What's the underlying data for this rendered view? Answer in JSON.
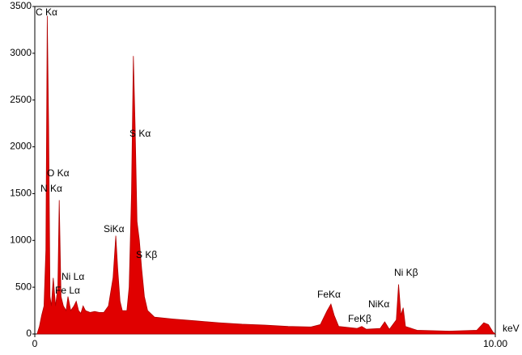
{
  "chart_data": {
    "type": "area",
    "x_label": "keV",
    "color": "#e00000",
    "xlim": [
      0,
      10
    ],
    "xticks": [
      0,
      {
        "value": 10,
        "label": "10.00"
      }
    ],
    "ylim": [
      0,
      3500
    ],
    "yticks": [
      0,
      500,
      1000,
      1500,
      2000,
      2500,
      3000,
      3500
    ],
    "x": [
      0.05,
      0.1,
      0.15,
      0.2,
      0.24,
      0.27,
      0.3,
      0.33,
      0.36,
      0.4,
      0.45,
      0.5,
      0.53,
      0.57,
      0.62,
      0.68,
      0.72,
      0.78,
      0.85,
      0.9,
      0.95,
      1.0,
      1.05,
      1.1,
      1.2,
      1.3,
      1.4,
      1.5,
      1.6,
      1.7,
      1.76,
      1.8,
      1.85,
      1.9,
      2.0,
      2.05,
      2.1,
      2.14,
      2.18,
      2.22,
      2.27,
      2.32,
      2.38,
      2.45,
      2.6,
      3.0,
      3.5,
      4.0,
      4.5,
      5.0,
      5.5,
      6.0,
      6.2,
      6.35,
      6.43,
      6.5,
      6.6,
      7.0,
      7.1,
      7.2,
      7.5,
      7.6,
      7.7,
      7.85,
      7.9,
      7.95,
      8.0,
      8.05,
      8.3,
      9.0,
      9.6,
      9.75,
      9.85,
      9.95,
      10
    ],
    "values": [
      0,
      80,
      200,
      300,
      900,
      3400,
      2200,
      400,
      300,
      600,
      300,
      500,
      1430,
      400,
      300,
      250,
      400,
      250,
      300,
      350,
      250,
      220,
      300,
      250,
      230,
      240,
      230,
      230,
      300,
      600,
      1050,
      700,
      350,
      250,
      250,
      500,
      1500,
      2970,
      2200,
      1200,
      1000,
      700,
      400,
      250,
      180,
      160,
      140,
      120,
      105,
      95,
      80,
      75,
      100,
      250,
      320,
      200,
      80,
      60,
      80,
      50,
      60,
      130,
      50,
      150,
      530,
      200,
      280,
      80,
      40,
      30,
      40,
      120,
      100,
      20,
      0
    ],
    "annotations": [
      "C Kα",
      "O Kα",
      "N Kα",
      "Ni Lα",
      "Fe Lα",
      "SiKα",
      "S Kα",
      "S Kβ",
      "FeKα",
      "FeKβ",
      "NiKα",
      "Ni Kβ"
    ]
  }
}
